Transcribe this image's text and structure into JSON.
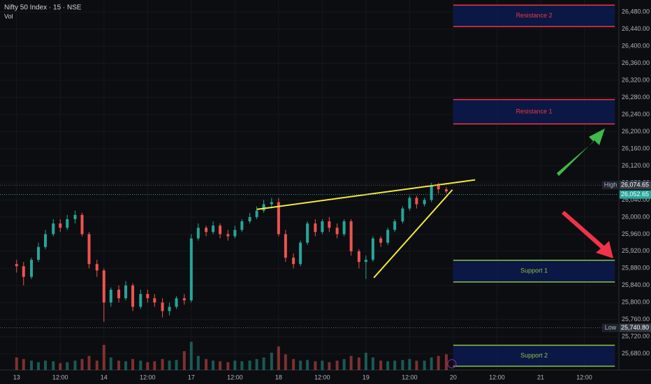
{
  "chart_data": {
    "type": "candlestick",
    "title": "Nifty 50 Index · 15 · NSE",
    "subtitle": "Vol",
    "up_color": "#26a69a",
    "down_color": "#ef5350",
    "xlim": [
      -0.19,
      6.88
    ],
    "ylim": [
      25642,
      26508
    ],
    "vlim": [
      0,
      100
    ],
    "xticks": [
      {
        "value": 0,
        "label": "13"
      },
      {
        "value": 0.5,
        "label": "12:00"
      },
      {
        "value": 1,
        "label": "14"
      },
      {
        "value": 1.5,
        "label": "12:00"
      },
      {
        "value": 2,
        "label": "17"
      },
      {
        "value": 2.5,
        "label": "12:00"
      },
      {
        "value": 3,
        "label": "18"
      },
      {
        "value": 3.5,
        "label": "12:00"
      },
      {
        "value": 4,
        "label": "19"
      },
      {
        "value": 4.5,
        "label": "12:00"
      },
      {
        "value": 5,
        "label": "20"
      },
      {
        "value": 5.5,
        "label": "12:00"
      },
      {
        "value": 6,
        "label": "21"
      },
      {
        "value": 6.5,
        "label": "12:00"
      }
    ],
    "yticks": [
      {
        "value": 25680,
        "label": "25,680.00"
      },
      {
        "value": 25720,
        "label": "25,720.00"
      },
      {
        "value": 25760,
        "label": "25,760.00"
      },
      {
        "value": 25800,
        "label": "25,800.00"
      },
      {
        "value": 25840,
        "label": "25,840.00"
      },
      {
        "value": 25880,
        "label": "25,880.00"
      },
      {
        "value": 25920,
        "label": "25,920.00"
      },
      {
        "value": 25960,
        "label": "25,960.00"
      },
      {
        "value": 26000,
        "label": "26,000.00"
      },
      {
        "value": 26040,
        "label": "26,040.00"
      },
      {
        "value": 26080,
        "label": "26,080.00"
      },
      {
        "value": 26120,
        "label": "26,120.00"
      },
      {
        "value": 26160,
        "label": "26,160.00"
      },
      {
        "value": 26200,
        "label": "26,200.00"
      },
      {
        "value": 26240,
        "label": "26,240.00"
      },
      {
        "value": 26280,
        "label": "26,280.00"
      },
      {
        "value": 26320,
        "label": "26,320.00"
      },
      {
        "value": 26360,
        "label": "26,360.00"
      },
      {
        "value": 26400,
        "label": "26,400.00"
      },
      {
        "value": 26440,
        "label": "26,440.00"
      },
      {
        "value": 26480,
        "label": "26,480.00"
      }
    ],
    "x": [
      0,
      0.08,
      0.17,
      0.25,
      0.33,
      0.42,
      0.5,
      0.58,
      0.67,
      0.75,
      0.83,
      0.92,
      1,
      1.08,
      1.17,
      1.25,
      1.33,
      1.42,
      1.5,
      1.58,
      1.67,
      1.75,
      1.83,
      1.92,
      2,
      2.08,
      2.17,
      2.25,
      2.33,
      2.42,
      2.5,
      2.58,
      2.67,
      2.75,
      2.83,
      2.92,
      3,
      3.08,
      3.17,
      3.25,
      3.33,
      3.42,
      3.5,
      3.58,
      3.67,
      3.75,
      3.83,
      3.92,
      4,
      4.08,
      4.17,
      4.25,
      4.33,
      4.42,
      4.5,
      4.58,
      4.67,
      4.75,
      4.83,
      4.92
    ],
    "open": [
      25890,
      25885,
      25860,
      25900,
      25930,
      25960,
      25985,
      25975,
      25995,
      26005,
      25960,
      25890,
      25875,
      25800,
      25830,
      25810,
      25840,
      25790,
      25820,
      25810,
      25800,
      25780,
      25790,
      25810,
      25805,
      25950,
      25975,
      25965,
      25980,
      25960,
      25955,
      25970,
      25990,
      26000,
      26015,
      26030,
      26035,
      25960,
      25905,
      25890,
      25940,
      25985,
      25965,
      25990,
      25975,
      25960,
      25990,
      25920,
      25895,
      25900,
      25950,
      25940,
      25970,
      25990,
      26020,
      26045,
      26030,
      26040,
      26075,
      26065
    ],
    "high": [
      25900,
      25895,
      25905,
      25940,
      25970,
      25995,
      25995,
      26005,
      26015,
      26010,
      25965,
      25900,
      25880,
      25835,
      25840,
      25850,
      25845,
      25830,
      25830,
      25820,
      25810,
      25800,
      25815,
      25820,
      25960,
      25985,
      25980,
      25990,
      25985,
      25970,
      25980,
      25995,
      26010,
      26025,
      26040,
      26045,
      26045,
      25970,
      25915,
      25945,
      25990,
      25995,
      25995,
      26000,
      25985,
      25995,
      25995,
      25925,
      25910,
      25955,
      25955,
      25975,
      25995,
      26025,
      26050,
      26050,
      26045,
      26080,
      26080,
      26070
    ],
    "low": [
      25870,
      25840,
      25855,
      25895,
      25925,
      25955,
      25965,
      25970,
      25985,
      25955,
      25880,
      25860,
      25755,
      25790,
      25800,
      25805,
      25780,
      25785,
      25800,
      25790,
      25765,
      25770,
      25785,
      25795,
      25800,
      25945,
      25955,
      25960,
      25950,
      25945,
      25950,
      25965,
      25985,
      25995,
      26010,
      26020,
      25955,
      25895,
      25880,
      25885,
      25935,
      25955,
      25960,
      25965,
      25950,
      25955,
      25910,
      25880,
      25855,
      25895,
      25930,
      25935,
      25965,
      25985,
      26015,
      26020,
      26025,
      26035,
      26055,
      26055
    ],
    "close": [
      25885,
      25860,
      25900,
      25930,
      25960,
      25985,
      25975,
      25995,
      26005,
      25960,
      25890,
      25875,
      25800,
      25830,
      25810,
      25840,
      25790,
      25820,
      25810,
      25800,
      25780,
      25790,
      25810,
      25805,
      25950,
      25975,
      25965,
      25980,
      25960,
      25955,
      25970,
      25990,
      26000,
      26015,
      26030,
      26035,
      25960,
      25905,
      25890,
      25940,
      25985,
      25965,
      25990,
      25975,
      25960,
      25990,
      25920,
      25895,
      25900,
      25950,
      25940,
      25970,
      25990,
      26020,
      26045,
      26030,
      26040,
      26075,
      26065,
      26060
    ],
    "volume": [
      40,
      35,
      30,
      25,
      30,
      28,
      22,
      25,
      30,
      35,
      45,
      30,
      80,
      40,
      30,
      28,
      35,
      30,
      25,
      28,
      35,
      30,
      32,
      60,
      90,
      45,
      35,
      30,
      28,
      25,
      30,
      28,
      30,
      35,
      40,
      55,
      75,
      50,
      35,
      30,
      32,
      28,
      30,
      25,
      30,
      35,
      45,
      40,
      55,
      40,
      30,
      28,
      30,
      32,
      35,
      30,
      30,
      40,
      45,
      50
    ],
    "zones": [
      {
        "label": "Resistance 2",
        "low": 26446,
        "high": 26496,
        "x": [
          5,
          6.85
        ],
        "color": "#f23645"
      },
      {
        "label": "Resistance 1",
        "low": 26218,
        "high": 26275,
        "x": [
          5,
          6.85
        ],
        "color": "#f23645"
      },
      {
        "label": "Support 1",
        "low": 25848,
        "high": 25899,
        "x": [
          5,
          6.85
        ],
        "color": "#8bc34a"
      },
      {
        "label": "Support 2",
        "low": 25651,
        "high": 25700,
        "x": [
          5,
          6.85
        ],
        "color": "#8bc34a"
      }
    ],
    "trendlines": [
      {
        "x": [
          2.75,
          5.25
        ],
        "y": [
          26018,
          26087
        ],
        "color": "#f5e93a"
      },
      {
        "x": [
          4.09,
          4.99
        ],
        "y": [
          25858,
          26064
        ],
        "color": "#f5e93a"
      }
    ],
    "price_lines": [
      {
        "label": "High",
        "value": 26074.65,
        "value_label": "26,074.65",
        "color": "#363a45"
      },
      {
        "value": 26052.65,
        "value_label": "26,052.65",
        "color": "#26a69a"
      },
      {
        "label": "Low",
        "value": 25740.8,
        "value_label": "25,740.80",
        "color": "#363a45"
      }
    ]
  }
}
